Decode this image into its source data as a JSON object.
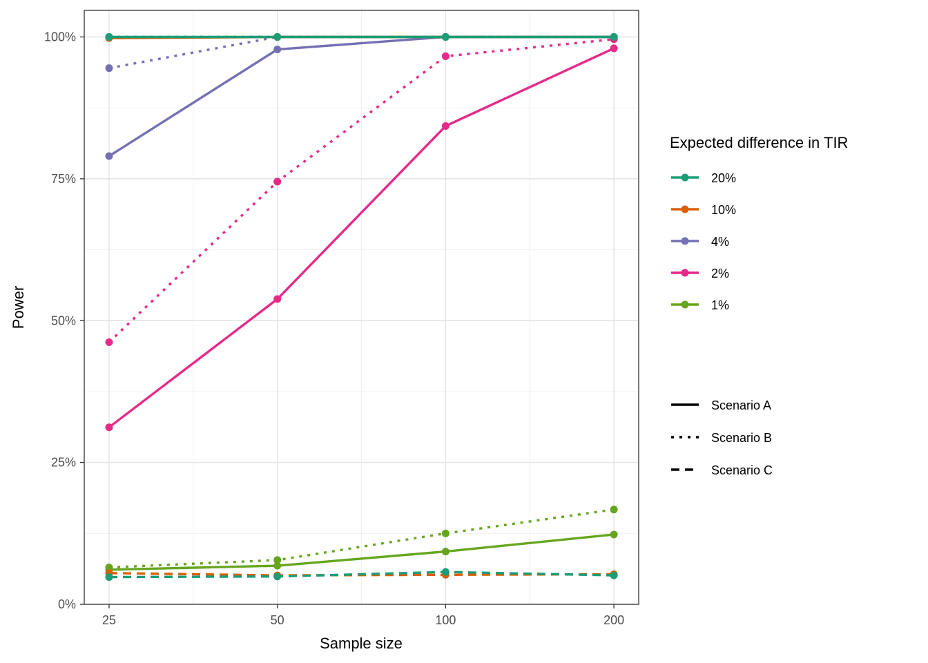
{
  "chart_data": {
    "type": "line",
    "xlabel": "Sample size",
    "ylabel": "Power",
    "x": [
      25,
      50,
      100,
      200
    ],
    "x_tick_labels": [
      "25",
      "50",
      "100",
      "200"
    ],
    "y_tick_labels": [
      "0%",
      "25%",
      "50%",
      "75%",
      "100%"
    ],
    "y_ticks": [
      0,
      25,
      50,
      75,
      100
    ],
    "ylim": [
      0,
      100
    ],
    "grid": true,
    "legend_placement": "right",
    "color_legend": {
      "title": "Expected difference in TIR",
      "entries": [
        {
          "label": "20%",
          "color": "#1b9e77"
        },
        {
          "label": "10%",
          "color": "#d95f02"
        },
        {
          "label": "4%",
          "color": "#7570b3"
        },
        {
          "label": "2%",
          "color": "#e7298a"
        },
        {
          "label": "1%",
          "color": "#66a61e"
        }
      ]
    },
    "linetype_legend": {
      "entries": [
        {
          "label": "Scenario A",
          "dash": "solid"
        },
        {
          "label": "Scenario B",
          "dash": "dotted"
        },
        {
          "label": "Scenario C",
          "dash": "dashed"
        }
      ]
    },
    "series": [
      {
        "difference": "20%",
        "scenario": "Scenario A",
        "values": [
          100,
          100,
          100,
          100
        ]
      },
      {
        "difference": "20%",
        "scenario": "Scenario B",
        "values": [
          100,
          100,
          100,
          100
        ]
      },
      {
        "difference": "20%",
        "scenario": "Scenario C",
        "values": [
          4.8,
          4.9,
          5.7,
          5.1
        ]
      },
      {
        "difference": "10%",
        "scenario": "Scenario A",
        "values": [
          99.8,
          100,
          100,
          100
        ]
      },
      {
        "difference": "10%",
        "scenario": "Scenario B",
        "values": [
          100,
          100,
          100,
          100
        ]
      },
      {
        "difference": "10%",
        "scenario": "Scenario C",
        "values": [
          5.5,
          5.1,
          5.2,
          5.3
        ]
      },
      {
        "difference": "4%",
        "scenario": "Scenario A",
        "values": [
          79,
          97.8,
          100,
          100
        ]
      },
      {
        "difference": "4%",
        "scenario": "Scenario B",
        "values": [
          94.5,
          100,
          100,
          100
        ]
      },
      {
        "difference": "2%",
        "scenario": "Scenario A",
        "values": [
          31.2,
          53.8,
          84.3,
          98
        ]
      },
      {
        "difference": "2%",
        "scenario": "Scenario B",
        "values": [
          46.2,
          74.5,
          96.6,
          99.6
        ]
      },
      {
        "difference": "1%",
        "scenario": "Scenario A",
        "values": [
          6.1,
          6.8,
          9.3,
          12.3
        ]
      },
      {
        "difference": "1%",
        "scenario": "Scenario B",
        "values": [
          6.5,
          7.8,
          12.5,
          16.7
        ]
      }
    ]
  }
}
